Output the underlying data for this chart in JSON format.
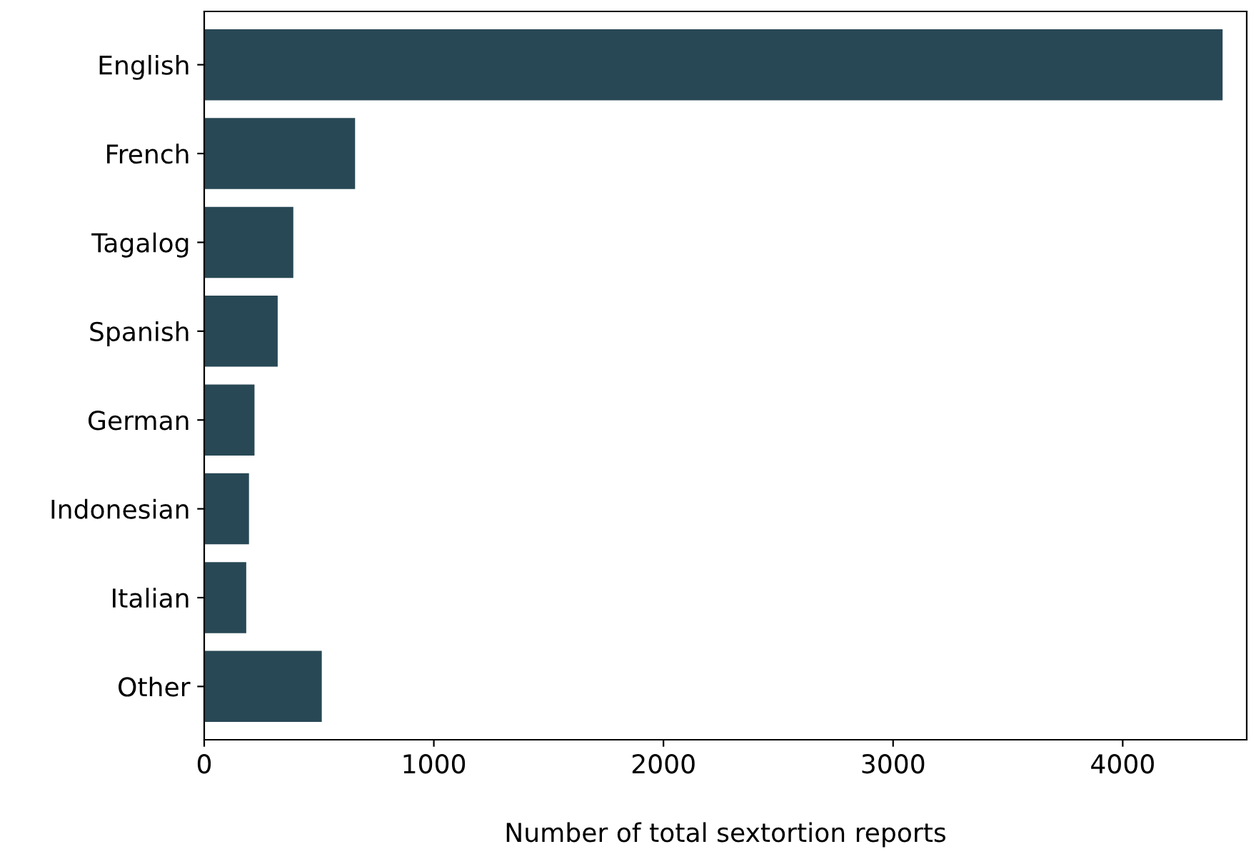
{
  "chart_data": {
    "type": "bar",
    "orientation": "horizontal",
    "categories": [
      "English",
      "French",
      "Tagalog",
      "Spanish",
      "German",
      "Indonesian",
      "Italian",
      "Other"
    ],
    "values": [
      4435,
      657,
      388,
      320,
      219,
      195,
      183,
      512
    ],
    "color": "#284855",
    "xlabel": "Number of total sextortion reports",
    "xlim": [
      0,
      4540
    ],
    "xticks": [
      0,
      1000,
      2000,
      3000,
      4000
    ],
    "grid": false
  }
}
